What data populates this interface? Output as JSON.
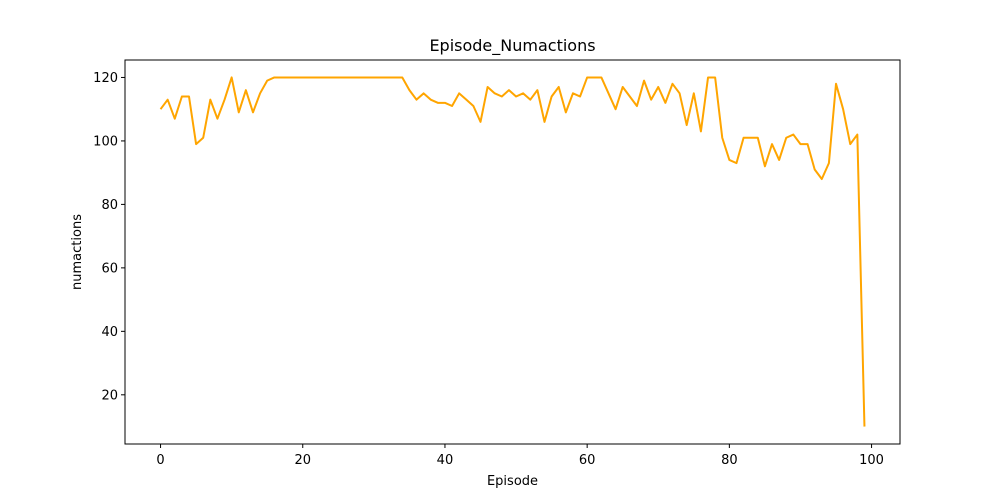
{
  "chart_data": {
    "type": "line",
    "title": "Episode_Numactions",
    "xlabel": "Episode",
    "ylabel": "numactions",
    "xlim": [
      -5,
      104
    ],
    "ylim": [
      4.5,
      125.5
    ],
    "xticks": [
      0,
      20,
      40,
      60,
      80,
      100
    ],
    "yticks": [
      20,
      40,
      60,
      80,
      100,
      120
    ],
    "grid": false,
    "legend": "none",
    "line_color": "#ffa500",
    "series": [
      {
        "x": [
          0,
          1,
          2,
          3,
          4,
          5,
          6,
          7,
          8,
          9,
          10,
          11,
          12,
          13,
          14,
          15,
          16,
          17,
          18,
          19,
          20,
          21,
          22,
          23,
          24,
          25,
          26,
          27,
          28,
          29,
          30,
          31,
          32,
          33,
          34,
          35,
          36,
          37,
          38,
          39,
          40,
          41,
          42,
          43,
          44,
          45,
          46,
          47,
          48,
          49,
          50,
          51,
          52,
          53,
          54,
          55,
          56,
          57,
          58,
          59,
          60,
          61,
          62,
          63,
          64,
          65,
          66,
          67,
          68,
          69,
          70,
          71,
          72,
          73,
          74,
          75,
          76,
          77,
          78,
          79,
          80,
          81,
          82,
          83,
          84,
          85,
          86,
          87,
          88,
          89,
          90,
          91,
          92,
          93,
          94,
          95,
          96,
          97,
          98,
          99
        ],
        "values": [
          110,
          113,
          107,
          114,
          114,
          99,
          101,
          113,
          107,
          113,
          120,
          109,
          116,
          109,
          115,
          119,
          120,
          120,
          120,
          120,
          120,
          120,
          120,
          120,
          120,
          120,
          120,
          120,
          120,
          120,
          120,
          120,
          120,
          120,
          120,
          116,
          113,
          115,
          113,
          112,
          112,
          111,
          115,
          113,
          111,
          106,
          117,
          115,
          114,
          116,
          114,
          115,
          113,
          116,
          106,
          114,
          117,
          109,
          115,
          114,
          120,
          120,
          120,
          115,
          110,
          117,
          114,
          111,
          119,
          113,
          117,
          112,
          118,
          115,
          105,
          115,
          103,
          120,
          120,
          101,
          94,
          93,
          101,
          101,
          101,
          92,
          99,
          94,
          101,
          102,
          99,
          99,
          91,
          88,
          93,
          118,
          110,
          99,
          102,
          10
        ]
      }
    ]
  }
}
